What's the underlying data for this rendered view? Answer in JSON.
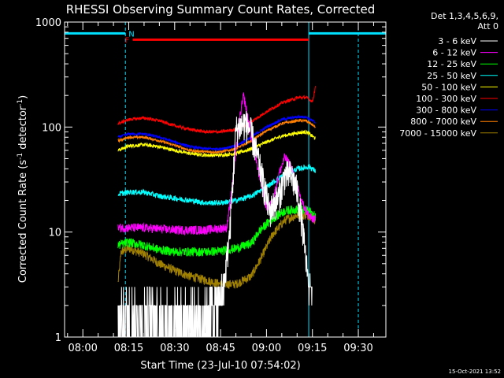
{
  "chart_data": {
    "type": "line",
    "title": "RHESSI Observing Summary Count Rates, Corrected",
    "xlabel": "Start Time (23-Jul-10 07:54:02)",
    "ylabel_main": "Corrected Count Rate (s",
    "ylabel_sup1": "-1",
    "ylabel_mid": " detector",
    "ylabel_sup2": "-1",
    "ylabel_end": ")",
    "yscale": "log",
    "ylim": [
      1,
      1000
    ],
    "xlim": [
      -5.97,
      99.0
    ],
    "y_ticks": [
      {
        "value": 1,
        "label": "1"
      },
      {
        "value": 10,
        "label": "10"
      },
      {
        "value": 100,
        "label": "100"
      },
      {
        "value": 1000,
        "label": "1000"
      }
    ],
    "x_ticks": [
      {
        "value": 0,
        "label": "08:00"
      },
      {
        "value": 15,
        "label": "08:15"
      },
      {
        "value": 30,
        "label": "08:30"
      },
      {
        "value": 45,
        "label": "08:45"
      },
      {
        "value": 60,
        "label": "09:00"
      },
      {
        "value": 75,
        "label": "09:15"
      },
      {
        "value": 90,
        "label": "09:30"
      }
    ],
    "legend_header": [
      "Det 1,3,4,5,6,9,",
      "Att 0"
    ],
    "legend_position": "right",
    "footer_stamp": "15-Oct-2021 13:52",
    "night_bars": [
      {
        "x_start": -5.97,
        "x_end": 13.9,
        "y": 780,
        "label": "N"
      },
      {
        "x_start": 73.8,
        "x_end": 99.0,
        "y": 780,
        "label": ""
      }
    ],
    "flare_bar": {
      "x_start": 16.3,
      "x_end": 73.8,
      "y": 680,
      "label": "F"
    },
    "vlines": [
      {
        "x": -5.97,
        "style": "solid"
      },
      {
        "x": 13.9,
        "style": "dashed"
      },
      {
        "x": 73.8,
        "style": "solid"
      },
      {
        "x": 90.0,
        "style": "dashed"
      }
    ],
    "colors": {
      "background": "#000000",
      "axes": "#ffffff",
      "orbit_markers": "#00e0ff",
      "flare_marker": "#ff0000"
    },
    "series": [
      {
        "name": "3 - 6 keV",
        "color": "#ffffff",
        "noise": 0.35,
        "x": [
          11.5,
          20,
          30,
          40,
          44,
          46,
          48,
          50,
          53,
          55,
          58,
          61,
          64,
          66,
          68,
          70,
          71.5,
          73,
          74,
          75
        ],
        "y": [
          1.5,
          1.6,
          1.5,
          1.6,
          2.0,
          3.0,
          10,
          95,
          112,
          90,
          40,
          16,
          22,
          35,
          36,
          25,
          13,
          5,
          3,
          2.5
        ]
      },
      {
        "name": "6 - 12 keV",
        "color": "#ff00ff",
        "noise": 0.1,
        "x": [
          11.5,
          20,
          30,
          40,
          47,
          49,
          51,
          52.5,
          54,
          56,
          58,
          60,
          62,
          64,
          66,
          68,
          70,
          72,
          74,
          76
        ],
        "y": [
          11,
          11,
          10.5,
          10.5,
          11,
          30,
          110,
          200,
          120,
          55,
          32,
          17,
          19,
          35,
          52,
          42,
          27,
          18,
          14,
          13
        ]
      },
      {
        "name": "12 - 25 keV",
        "color": "#00ff00",
        "noise": 0.1,
        "x": [
          11.5,
          15,
          20,
          25,
          30,
          35,
          40,
          45,
          50,
          55,
          58,
          62,
          66,
          70,
          74,
          76
        ],
        "y": [
          7.5,
          8.0,
          7.5,
          6.8,
          6.5,
          6.5,
          6.5,
          6.6,
          7.0,
          7.8,
          10.5,
          13.5,
          16,
          16.5,
          16,
          14
        ]
      },
      {
        "name": "25 - 50 keV",
        "color": "#00ffff",
        "noise": 0.06,
        "x": [
          11.5,
          15,
          20,
          25,
          30,
          35,
          40,
          45,
          50,
          55,
          60,
          65,
          70,
          74,
          76
        ],
        "y": [
          23,
          24,
          24,
          22,
          21,
          20,
          19,
          19,
          20,
          22,
          27,
          34,
          40,
          42,
          38
        ]
      },
      {
        "name": "50 - 100 keV",
        "color": "#ffff00",
        "noise": 0.04,
        "x": [
          11.5,
          15,
          20,
          25,
          30,
          35,
          40,
          45,
          50,
          55,
          60,
          65,
          70,
          73,
          76
        ],
        "y": [
          60,
          66,
          68,
          65,
          60,
          56,
          54,
          54,
          56,
          62,
          72,
          82,
          88,
          90,
          78
        ]
      },
      {
        "name": "100 - 300 keV",
        "color": "#ff0000",
        "noise": 0.035,
        "x": [
          11.5,
          15,
          20,
          25,
          30,
          35,
          40,
          45,
          50,
          55,
          60,
          65,
          70,
          73,
          75,
          76
        ],
        "y": [
          108,
          118,
          122,
          115,
          103,
          95,
          90,
          90,
          95,
          112,
          140,
          170,
          190,
          192,
          175,
          240
        ]
      },
      {
        "name": "300 - 800 keV",
        "color": "#0000ff",
        "noise": 0.03,
        "x": [
          11.5,
          15,
          20,
          25,
          30,
          35,
          40,
          45,
          50,
          55,
          60,
          65,
          70,
          73,
          76
        ],
        "y": [
          80,
          86,
          86,
          80,
          72,
          65,
          62,
          62,
          66,
          80,
          100,
          118,
          125,
          125,
          110
        ]
      },
      {
        "name": "800 - 7000 keV",
        "color": "#ff8000",
        "noise": 0.03,
        "x": [
          11.5,
          15,
          20,
          25,
          30,
          35,
          40,
          45,
          50,
          55,
          60,
          65,
          70,
          73,
          76
        ],
        "y": [
          74,
          80,
          80,
          74,
          67,
          60,
          58,
          58,
          62,
          74,
          92,
          108,
          115,
          115,
          100
        ]
      },
      {
        "name": "7000 - 15000 keV",
        "color": "#a08000",
        "noise": 0.1,
        "x": [
          11.5,
          12.5,
          15,
          20,
          25,
          30,
          35,
          40,
          45,
          50,
          55,
          58,
          62,
          66,
          70,
          74,
          76
        ],
        "y": [
          3.3,
          6.5,
          7.0,
          6.2,
          5.0,
          4.3,
          3.8,
          3.5,
          3.2,
          3.2,
          3.8,
          5.5,
          9.5,
          13,
          14.5,
          14.5,
          13
        ]
      }
    ]
  }
}
